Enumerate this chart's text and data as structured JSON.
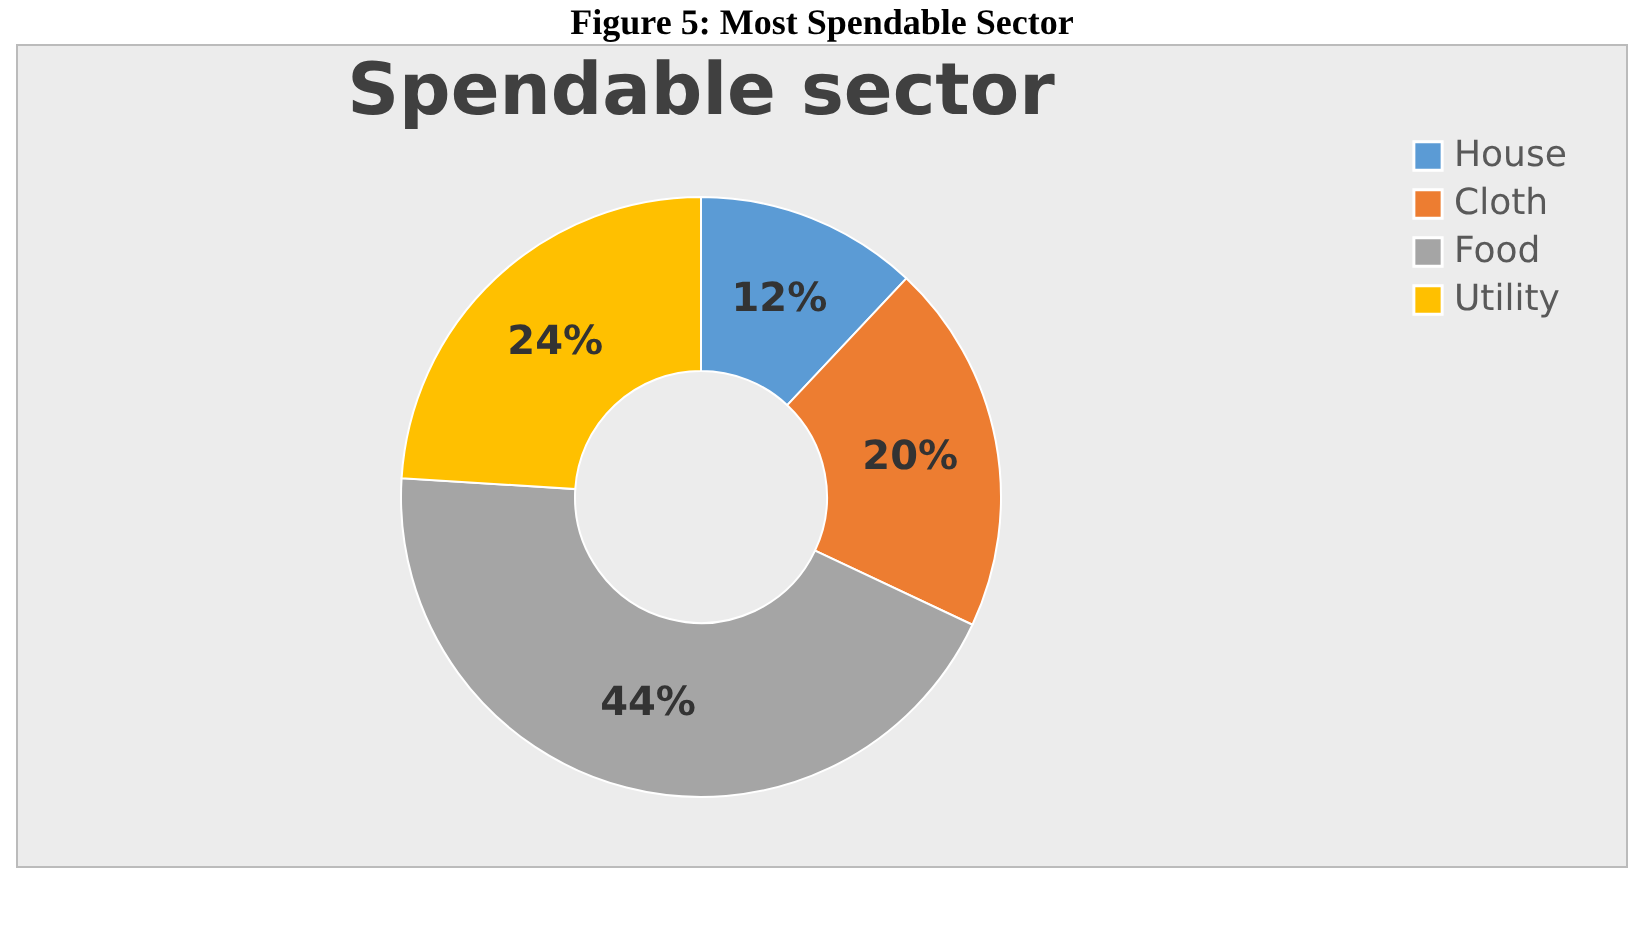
{
  "chart_data": {
    "type": "donut",
    "title": "Spendable sector",
    "annotations": [
      "Figure 5: Most Spendable Sector"
    ],
    "categories": [
      "House",
      "Cloth",
      "Food",
      "Utility"
    ],
    "values": [
      12,
      20,
      44,
      24
    ],
    "colors": [
      "#5b9bd5",
      "#ed7d31",
      "#a5a5a5",
      "#ffc000"
    ],
    "value_labels": [
      "12%",
      "20%",
      "44%",
      "24%"
    ],
    "legend": "right"
  }
}
